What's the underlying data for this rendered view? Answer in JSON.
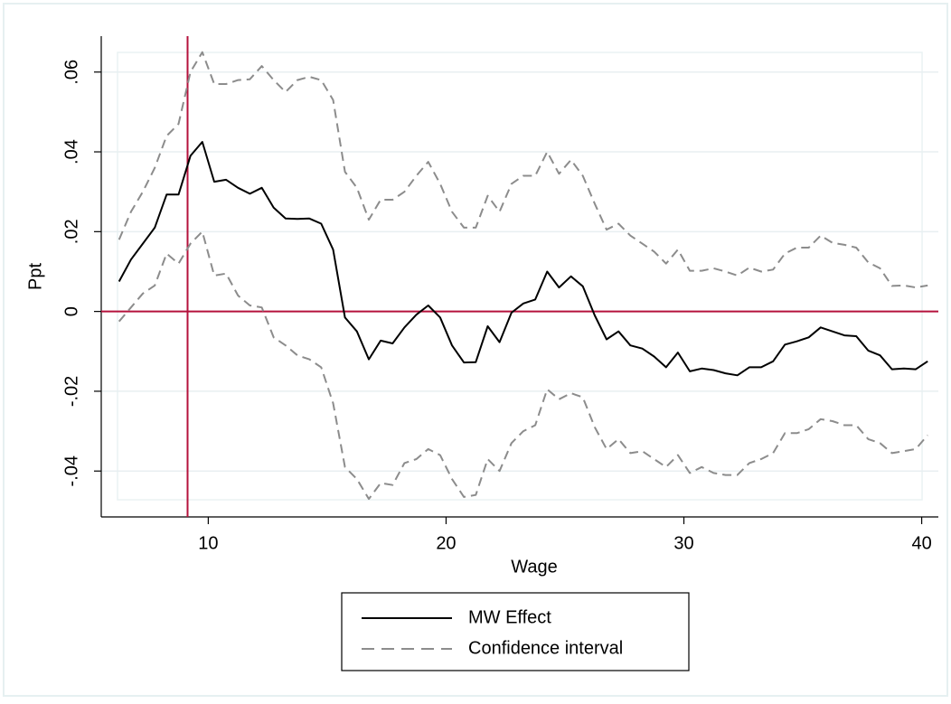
{
  "chart_data": {
    "type": "line",
    "xlabel": "Wage",
    "ylabel": "Ppt",
    "x": [
      6.25,
      6.75,
      7.25,
      7.75,
      8.25,
      8.75,
      9.25,
      9.75,
      10.25,
      10.75,
      11.25,
      11.75,
      12.25,
      12.75,
      13.25,
      13.75,
      14.25,
      14.75,
      15.25,
      15.75,
      16.25,
      16.75,
      17.25,
      17.75,
      18.25,
      18.75,
      19.25,
      19.75,
      20.25,
      20.75,
      21.25,
      21.75,
      22.25,
      22.75,
      23.25,
      23.75,
      24.25,
      24.75,
      25.25,
      25.75,
      26.25,
      26.75,
      27.25,
      27.75,
      28.25,
      28.75,
      29.25,
      29.75,
      30.25,
      30.75,
      31.25,
      31.75,
      32.25,
      32.75,
      33.25,
      33.75,
      34.25,
      34.75,
      35.25,
      35.75,
      36.25,
      36.75,
      37.25,
      37.75,
      38.25,
      38.75,
      39.25,
      39.75,
      40.25
    ],
    "series": [
      {
        "name": "MW Effect",
        "color": "#000000",
        "dash": false,
        "values": [
          0.0075,
          0.013,
          0.017,
          0.021,
          0.0293,
          0.0293,
          0.039,
          0.0425,
          0.0325,
          0.033,
          0.031,
          0.0295,
          0.031,
          0.026,
          0.0233,
          0.0232,
          0.0233,
          0.022,
          0.0155,
          -0.0015,
          -0.005,
          -0.012,
          -0.0073,
          -0.008,
          -0.004,
          -0.0008,
          0.0015,
          -0.0015,
          -0.0085,
          -0.0128,
          -0.0127,
          -0.0037,
          -0.0077,
          -0.0003,
          0.002,
          0.003,
          0.01,
          0.006,
          0.0088,
          0.0063,
          -0.001,
          -0.007,
          -0.005,
          -0.0085,
          -0.0093,
          -0.0113,
          -0.014,
          -0.0103,
          -0.015,
          -0.0143,
          -0.0147,
          -0.0155,
          -0.016,
          -0.014,
          -0.014,
          -0.0125,
          -0.0083,
          -0.0075,
          -0.0065,
          -0.004,
          -0.005,
          -0.006,
          -0.0062,
          -0.0098,
          -0.011,
          -0.0145,
          -0.0143,
          -0.0145,
          -0.0125
        ]
      },
      {
        "name": "Confidence interval",
        "color": "#8c8c8c",
        "dash": true,
        "upper": [
          0.018,
          0.025,
          0.03,
          0.036,
          0.044,
          0.047,
          0.06,
          0.065,
          0.057,
          0.057,
          0.058,
          0.0582,
          0.0615,
          0.058,
          0.055,
          0.058,
          0.0588,
          0.058,
          0.053,
          0.035,
          0.031,
          0.023,
          0.028,
          0.028,
          0.03,
          0.034,
          0.0375,
          0.032,
          0.025,
          0.021,
          0.021,
          0.029,
          0.025,
          0.032,
          0.034,
          0.034,
          0.04,
          0.0345,
          0.038,
          0.034,
          0.027,
          0.0205,
          0.022,
          0.019,
          0.017,
          0.015,
          0.012,
          0.0155,
          0.0102,
          0.0102,
          0.0108,
          0.01,
          0.009,
          0.011,
          0.01,
          0.0105,
          0.0145,
          0.016,
          0.016,
          0.019,
          0.0172,
          0.0167,
          0.016,
          0.0123,
          0.0108,
          0.0064,
          0.0065,
          0.006,
          0.0065
        ],
        "lower": [
          -0.0025,
          0.001,
          0.0045,
          0.0065,
          0.0145,
          0.012,
          0.017,
          0.02,
          0.009,
          0.0095,
          0.004,
          0.0015,
          0.001,
          -0.0065,
          -0.0085,
          -0.011,
          -0.012,
          -0.014,
          -0.023,
          -0.039,
          -0.042,
          -0.047,
          -0.043,
          -0.0435,
          -0.038,
          -0.037,
          -0.0345,
          -0.036,
          -0.042,
          -0.0465,
          -0.046,
          -0.037,
          -0.04,
          -0.033,
          -0.03,
          -0.0285,
          -0.0195,
          -0.022,
          -0.0205,
          -0.0215,
          -0.029,
          -0.0345,
          -0.032,
          -0.0355,
          -0.035,
          -0.037,
          -0.039,
          -0.036,
          -0.0405,
          -0.039,
          -0.0405,
          -0.041,
          -0.041,
          -0.038,
          -0.037,
          -0.0355,
          -0.0305,
          -0.0305,
          -0.0295,
          -0.027,
          -0.0275,
          -0.0285,
          -0.0285,
          -0.032,
          -0.033,
          -0.0355,
          -0.035,
          -0.0345,
          -0.031
        ]
      }
    ],
    "xlim": [
      5.5,
      40.7
    ],
    "xticks": [
      10,
      20,
      30,
      40
    ],
    "ylim": [
      -0.0515,
      0.069
    ],
    "yticks": [
      {
        "value": -0.04,
        "label": "-.04"
      },
      {
        "value": -0.02,
        "label": "-.02"
      },
      0,
      {
        "value": 0.02,
        "label": ".02"
      },
      {
        "value": 0.04,
        "label": ".04"
      },
      {
        "value": 0.06,
        "label": ".06"
      }
    ],
    "grid": true,
    "legend": "bottom",
    "reference_lines": {
      "x": 9.13,
      "y": 0,
      "color": "#b5123c"
    }
  }
}
